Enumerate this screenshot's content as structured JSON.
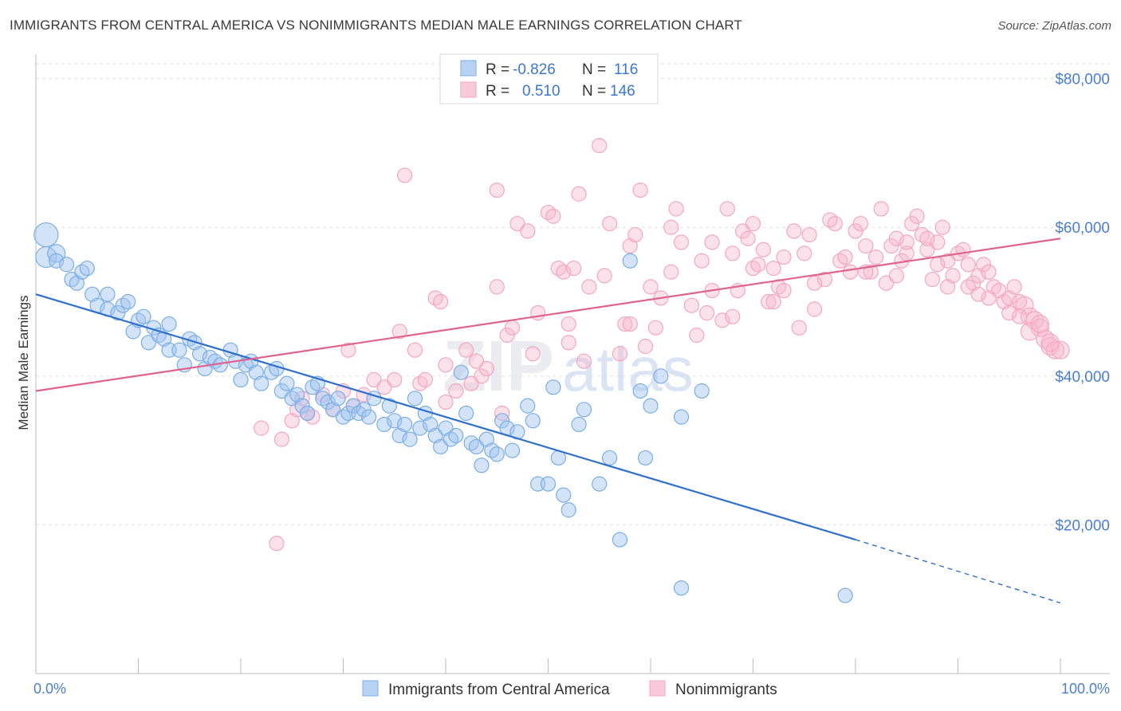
{
  "title": "IMMIGRANTS FROM CENTRAL AMERICA VS NONIMMIGRANTS MEDIAN MALE EARNINGS CORRELATION CHART",
  "source": "Source: ZipAtlas.com",
  "watermark": {
    "zip": "ZIP",
    "atlas": "atlas"
  },
  "chart_data": {
    "type": "scatter",
    "title": "IMMIGRANTS FROM CENTRAL AMERICA VS NONIMMIGRANTS MEDIAN MALE EARNINGS CORRELATION CHART",
    "xlabel": "",
    "ylabel": "Median Male Earnings",
    "xlim": [
      0,
      100
    ],
    "ylim": [
      0,
      82000
    ],
    "x_tick_labels": {
      "left": "0.0%",
      "right": "100.0%"
    },
    "y_ticks": [
      {
        "value": 20000,
        "label": "$20,000"
      },
      {
        "value": 40000,
        "label": "$40,000"
      },
      {
        "value": 60000,
        "label": "$60,000"
      },
      {
        "value": 80000,
        "label": "$80,000"
      }
    ],
    "legend": {
      "rows": [
        {
          "r_label": "R =",
          "r_value": "-0.826",
          "n_label": "N =",
          "n_value": "116"
        },
        {
          "r_label": "R =",
          "r_value": "0.510",
          "n_label": "N =",
          "n_value": "146"
        }
      ]
    },
    "series": [
      {
        "name": "Immigrants from Central America",
        "color": "#7aaee8",
        "line_color": "#2f6fcf",
        "trend": {
          "x0": 0,
          "y0": 51000,
          "x1": 80,
          "y1": 18000,
          "dash_to_x": 100,
          "dash_to_y": 9500
        },
        "points": [
          [
            1,
            59000
          ],
          [
            1,
            56000
          ],
          [
            2,
            56500
          ],
          [
            2,
            55500
          ],
          [
            3,
            55000
          ],
          [
            3.5,
            53000
          ],
          [
            4,
            52500
          ],
          [
            4.5,
            54000
          ],
          [
            5,
            54500
          ],
          [
            5.5,
            51000
          ],
          [
            6,
            49500
          ],
          [
            7,
            51000
          ],
          [
            7,
            49000
          ],
          [
            8,
            48500
          ],
          [
            8.5,
            49500
          ],
          [
            9,
            50000
          ],
          [
            9.5,
            46000
          ],
          [
            10,
            47500
          ],
          [
            10.5,
            48000
          ],
          [
            11,
            44500
          ],
          [
            11.5,
            46500
          ],
          [
            12,
            45500
          ],
          [
            12.5,
            45000
          ],
          [
            13,
            47000
          ],
          [
            13,
            43500
          ],
          [
            14,
            43500
          ],
          [
            14.5,
            41500
          ],
          [
            15,
            45000
          ],
          [
            15.5,
            44500
          ],
          [
            16,
            43000
          ],
          [
            16.5,
            41000
          ],
          [
            17,
            42500
          ],
          [
            17.5,
            42000
          ],
          [
            18,
            41500
          ],
          [
            19,
            43500
          ],
          [
            19.5,
            42000
          ],
          [
            20,
            39500
          ],
          [
            20.5,
            41500
          ],
          [
            21,
            42000
          ],
          [
            21.5,
            40500
          ],
          [
            22,
            39000
          ],
          [
            23,
            40500
          ],
          [
            23.5,
            41000
          ],
          [
            24,
            38000
          ],
          [
            24.5,
            39000
          ],
          [
            25,
            37000
          ],
          [
            25.5,
            37500
          ],
          [
            26,
            36000
          ],
          [
            26.5,
            35000
          ],
          [
            27,
            38500
          ],
          [
            27.5,
            39000
          ],
          [
            28,
            37000
          ],
          [
            28.5,
            36500
          ],
          [
            29,
            35500
          ],
          [
            29.5,
            37000
          ],
          [
            30,
            34500
          ],
          [
            30.5,
            35000
          ],
          [
            31,
            36000
          ],
          [
            31.5,
            35000
          ],
          [
            32,
            35500
          ],
          [
            32.5,
            34500
          ],
          [
            33,
            37000
          ],
          [
            34,
            33500
          ],
          [
            34.5,
            36000
          ],
          [
            35,
            34000
          ],
          [
            35.5,
            32000
          ],
          [
            36,
            33500
          ],
          [
            36.5,
            31500
          ],
          [
            37,
            37000
          ],
          [
            37.5,
            33000
          ],
          [
            38,
            35000
          ],
          [
            38.5,
            33500
          ],
          [
            39,
            32000
          ],
          [
            39.5,
            30500
          ],
          [
            40,
            33000
          ],
          [
            40.5,
            31500
          ],
          [
            41,
            32000
          ],
          [
            41.5,
            40500
          ],
          [
            42,
            35000
          ],
          [
            42.5,
            31000
          ],
          [
            43,
            30500
          ],
          [
            43.5,
            28000
          ],
          [
            44,
            31500
          ],
          [
            44.5,
            30000
          ],
          [
            45,
            29500
          ],
          [
            45.5,
            34000
          ],
          [
            46,
            33000
          ],
          [
            46.5,
            30000
          ],
          [
            47,
            32500
          ],
          [
            48,
            36000
          ],
          [
            48.5,
            34000
          ],
          [
            49,
            25500
          ],
          [
            50,
            25500
          ],
          [
            50.5,
            38500
          ],
          [
            51,
            29000
          ],
          [
            51.5,
            24000
          ],
          [
            52,
            22000
          ],
          [
            53,
            33500
          ],
          [
            53.5,
            35500
          ],
          [
            55,
            25500
          ],
          [
            56,
            29000
          ],
          [
            57,
            18000
          ],
          [
            58,
            55500
          ],
          [
            59,
            38000
          ],
          [
            59.5,
            29000
          ],
          [
            60,
            36000
          ],
          [
            61,
            40000
          ],
          [
            63,
            34500
          ],
          [
            63,
            11500
          ],
          [
            65,
            38000
          ],
          [
            79,
            10500
          ]
        ]
      },
      {
        "name": "Nonimmigrants",
        "color": "#f4a7c0",
        "line_color": "#e0638f",
        "trend": {
          "x0": 0,
          "y0": 38000,
          "x1": 100,
          "y1": 58500
        },
        "points": [
          [
            22,
            33000
          ],
          [
            23.5,
            17500
          ],
          [
            24,
            31500
          ],
          [
            25,
            34000
          ],
          [
            25.5,
            35500
          ],
          [
            26,
            37000
          ],
          [
            26.5,
            35000
          ],
          [
            27,
            34500
          ],
          [
            28,
            37500
          ],
          [
            29,
            35500
          ],
          [
            30,
            38000
          ],
          [
            30.5,
            43500
          ],
          [
            31,
            36000
          ],
          [
            32,
            37500
          ],
          [
            33,
            39500
          ],
          [
            34,
            38500
          ],
          [
            35,
            39500
          ],
          [
            35.5,
            46000
          ],
          [
            36,
            67000
          ],
          [
            37,
            43500
          ],
          [
            37.5,
            39000
          ],
          [
            38,
            39500
          ],
          [
            39,
            50500
          ],
          [
            39.5,
            50000
          ],
          [
            40,
            41500
          ],
          [
            41,
            38000
          ],
          [
            42,
            43500
          ],
          [
            42.5,
            39000
          ],
          [
            43,
            42000
          ],
          [
            43.5,
            40000
          ],
          [
            44,
            41000
          ],
          [
            45,
            65000
          ],
          [
            45.5,
            35000
          ],
          [
            46,
            45500
          ],
          [
            46.5,
            46500
          ],
          [
            47,
            60500
          ],
          [
            48,
            59500
          ],
          [
            48.5,
            43000
          ],
          [
            49,
            48500
          ],
          [
            50,
            62000
          ],
          [
            50.5,
            61500
          ],
          [
            51,
            54500
          ],
          [
            51.5,
            54000
          ],
          [
            52,
            44500
          ],
          [
            52.5,
            54500
          ],
          [
            53,
            64500
          ],
          [
            53.5,
            42000
          ],
          [
            54,
            52000
          ],
          [
            55,
            71000
          ],
          [
            55.5,
            53500
          ],
          [
            56,
            60500
          ],
          [
            57,
            43000
          ],
          [
            57.5,
            47000
          ],
          [
            58,
            57500
          ],
          [
            58.5,
            59000
          ],
          [
            59,
            65000
          ],
          [
            59.5,
            44000
          ],
          [
            60,
            52000
          ],
          [
            60.5,
            46500
          ],
          [
            61,
            50500
          ],
          [
            62,
            60000
          ],
          [
            62.5,
            62500
          ],
          [
            63,
            58000
          ],
          [
            64,
            49500
          ],
          [
            64.5,
            45500
          ],
          [
            65,
            55500
          ],
          [
            65.5,
            48500
          ],
          [
            66,
            51500
          ],
          [
            67,
            47500
          ],
          [
            67.5,
            62500
          ],
          [
            68,
            56500
          ],
          [
            68.5,
            51500
          ],
          [
            69,
            59500
          ],
          [
            69.5,
            58500
          ],
          [
            70,
            54500
          ],
          [
            70.5,
            55000
          ],
          [
            71,
            57000
          ],
          [
            71.5,
            50000
          ],
          [
            72,
            54500
          ],
          [
            72.5,
            52000
          ],
          [
            73,
            51500
          ],
          [
            74,
            59500
          ],
          [
            74.5,
            46500
          ],
          [
            75,
            56500
          ],
          [
            75.5,
            59000
          ],
          [
            76,
            49000
          ],
          [
            77,
            53000
          ],
          [
            77.5,
            61000
          ],
          [
            78,
            60500
          ],
          [
            78.5,
            55500
          ],
          [
            79,
            56000
          ],
          [
            79.5,
            54000
          ],
          [
            80,
            59500
          ],
          [
            80.5,
            60500
          ],
          [
            81,
            57500
          ],
          [
            81.5,
            54000
          ],
          [
            82,
            56000
          ],
          [
            82.5,
            62500
          ],
          [
            83,
            52500
          ],
          [
            83.5,
            57500
          ],
          [
            84,
            58500
          ],
          [
            84.5,
            55500
          ],
          [
            85,
            56500
          ],
          [
            85.5,
            60500
          ],
          [
            86,
            61500
          ],
          [
            86.5,
            59000
          ],
          [
            87,
            57000
          ],
          [
            87.5,
            53000
          ],
          [
            88,
            58000
          ],
          [
            88.5,
            60000
          ],
          [
            89,
            55500
          ],
          [
            89.5,
            53500
          ],
          [
            90,
            56500
          ],
          [
            90.5,
            57000
          ],
          [
            91,
            55000
          ],
          [
            91.5,
            52500
          ],
          [
            92,
            53500
          ],
          [
            92.5,
            55000
          ],
          [
            93,
            54000
          ],
          [
            93.5,
            52000
          ],
          [
            94,
            51500
          ],
          [
            94.5,
            50000
          ],
          [
            95,
            50500
          ],
          [
            95.5,
            52000
          ],
          [
            96,
            50000
          ],
          [
            96.5,
            49500
          ],
          [
            97,
            48000
          ],
          [
            97.5,
            47500
          ],
          [
            98,
            46500
          ],
          [
            98.5,
            45000
          ],
          [
            99,
            44000
          ],
          [
            99.5,
            43500
          ],
          [
            100,
            43500
          ],
          [
            62,
            54000
          ],
          [
            66,
            58000
          ],
          [
            70,
            60500
          ],
          [
            73,
            56000
          ],
          [
            76,
            52500
          ],
          [
            81,
            54000
          ],
          [
            84,
            53500
          ],
          [
            87,
            58500
          ],
          [
            89,
            52000
          ],
          [
            91,
            52000
          ],
          [
            93,
            50500
          ],
          [
            95,
            48500
          ],
          [
            97,
            46000
          ],
          [
            99,
            44500
          ],
          [
            68,
            48000
          ],
          [
            72,
            50000
          ],
          [
            85,
            58000
          ],
          [
            88,
            55000
          ],
          [
            92,
            51000
          ],
          [
            98,
            47000
          ],
          [
            96,
            48000
          ],
          [
            58,
            47000
          ],
          [
            52,
            47000
          ],
          [
            45,
            52000
          ],
          [
            40,
            36500
          ]
        ]
      }
    ]
  },
  "bottom_legend": {
    "items": [
      {
        "label": "Immigrants from Central America"
      },
      {
        "label": "Nonimmigrants"
      }
    ]
  }
}
